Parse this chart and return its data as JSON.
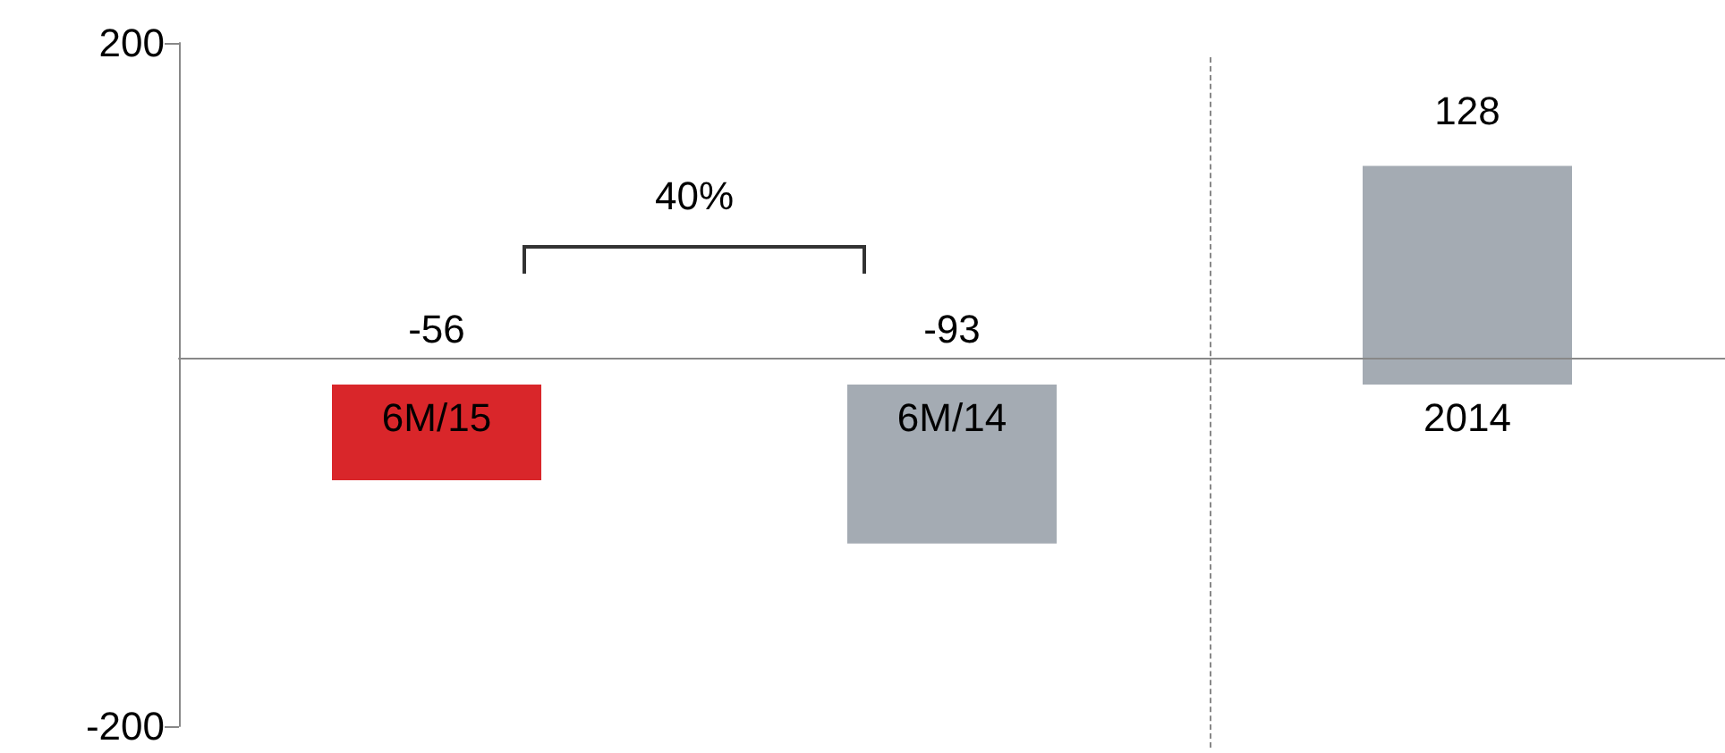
{
  "chart_data": {
    "type": "bar",
    "categories": [
      "6M/15",
      "6M/14",
      "2014"
    ],
    "values": [
      -56,
      -93,
      128
    ],
    "colors": [
      "#d9262a",
      "#a4abb3",
      "#a4abb3"
    ],
    "ylim": [
      -200,
      200
    ],
    "yticks": [
      200,
      -200
    ],
    "grid": false,
    "data_labels": true,
    "annotations": [
      "40%"
    ]
  }
}
